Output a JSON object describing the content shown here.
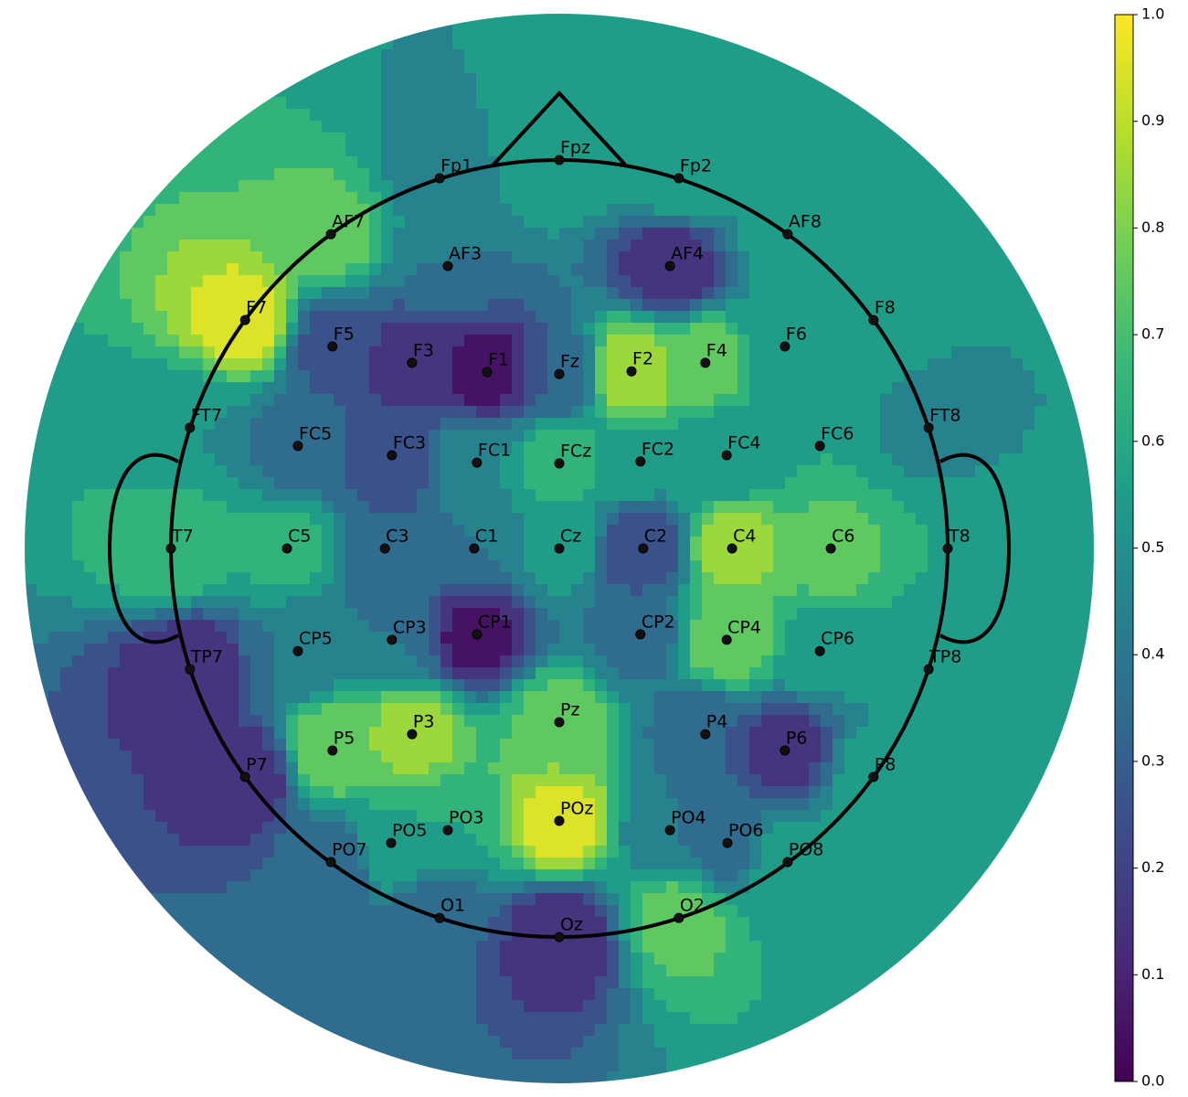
{
  "chart_data": {
    "type": "topomap",
    "colormap": "viridis",
    "clim": [
      0,
      1
    ],
    "cticks": [
      {
        "value": 0,
        "label": "0.0"
      },
      0.1,
      0.2,
      0.3,
      0.4,
      0.5,
      0.6,
      0.7,
      0.8,
      0.9,
      {
        "value": 1,
        "label": "1.0"
      }
    ],
    "levels": 10,
    "electrodes": [
      {
        "name": "Fp1",
        "x": -0.308,
        "y": 0.953,
        "value": 0.45
      },
      {
        "name": "Fpz",
        "x": 0,
        "y": 1.0,
        "value": 0.6
      },
      {
        "name": "Fp2",
        "x": 0.308,
        "y": 0.953,
        "value": 0.6
      },
      {
        "name": "AF7",
        "x": -0.588,
        "y": 0.809,
        "value": 0.75
      },
      {
        "name": "AF3",
        "x": -0.287,
        "y": 0.727,
        "value": 0.4
      },
      {
        "name": "AF4",
        "x": 0.285,
        "y": 0.727,
        "value": 0.1
      },
      {
        "name": "AF8",
        "x": 0.588,
        "y": 0.809,
        "value": 0.55
      },
      {
        "name": "F7",
        "x": -0.809,
        "y": 0.588,
        "value": 0.95
      },
      {
        "name": "F5",
        "x": -0.584,
        "y": 0.52,
        "value": 0.25
      },
      {
        "name": "F3",
        "x": -0.379,
        "y": 0.478,
        "value": 0.15
      },
      {
        "name": "F1",
        "x": -0.186,
        "y": 0.454,
        "value": 0.05
      },
      {
        "name": "Fz",
        "x": 0,
        "y": 0.449,
        "value": 0.3
      },
      {
        "name": "F2",
        "x": 0.186,
        "y": 0.456,
        "value": 0.9
      },
      {
        "name": "F4",
        "x": 0.376,
        "y": 0.478,
        "value": 0.75
      },
      {
        "name": "F6",
        "x": 0.581,
        "y": 0.52,
        "value": 0.5
      },
      {
        "name": "F8",
        "x": 0.809,
        "y": 0.588,
        "value": 0.55
      },
      {
        "name": "FT7",
        "x": -0.951,
        "y": 0.311,
        "value": 0.5
      },
      {
        "name": "FC5",
        "x": -0.673,
        "y": 0.264,
        "value": 0.35
      },
      {
        "name": "FC3",
        "x": -0.431,
        "y": 0.24,
        "value": 0.2
      },
      {
        "name": "FC1",
        "x": -0.212,
        "y": 0.221,
        "value": 0.5
      },
      {
        "name": "FCz",
        "x": 0,
        "y": 0.219,
        "value": 0.65
      },
      {
        "name": "FC2",
        "x": 0.209,
        "y": 0.224,
        "value": 0.55
      },
      {
        "name": "FC4",
        "x": 0.431,
        "y": 0.24,
        "value": 0.5
      },
      {
        "name": "FC6",
        "x": 0.671,
        "y": 0.264,
        "value": 0.6
      },
      {
        "name": "FT8",
        "x": 0.951,
        "y": 0.311,
        "value": 0.45
      },
      {
        "name": "T7",
        "x": -1.0,
        "y": 0,
        "value": 0.7
      },
      {
        "name": "C5",
        "x": -0.701,
        "y": 0,
        "value": 0.65
      },
      {
        "name": "C3",
        "x": -0.449,
        "y": 0,
        "value": 0.3
      },
      {
        "name": "C1",
        "x": -0.219,
        "y": 0,
        "value": 0.4
      },
      {
        "name": "Cz",
        "x": 0,
        "y": 0,
        "value": 0.55
      },
      {
        "name": "C2",
        "x": 0.216,
        "y": 0,
        "value": 0.2
      },
      {
        "name": "C4",
        "x": 0.445,
        "y": 0,
        "value": 0.85
      },
      {
        "name": "C6",
        "x": 0.699,
        "y": 0,
        "value": 0.75
      },
      {
        "name": "T8",
        "x": 1.0,
        "y": 0,
        "value": 0.6
      },
      {
        "name": "TP7",
        "x": -0.951,
        "y": -0.311,
        "value": 0.1
      },
      {
        "name": "CP5",
        "x": -0.673,
        "y": -0.264,
        "value": 0.4
      },
      {
        "name": "CP3",
        "x": -0.431,
        "y": -0.235,
        "value": 0.4
      },
      {
        "name": "CP1",
        "x": -0.212,
        "y": -0.221,
        "value": 0.05
      },
      {
        "name": "CP2",
        "x": 0.209,
        "y": -0.221,
        "value": 0.35
      },
      {
        "name": "CP4",
        "x": 0.431,
        "y": -0.235,
        "value": 0.8
      },
      {
        "name": "CP6",
        "x": 0.671,
        "y": -0.264,
        "value": 0.55
      },
      {
        "name": "TP8",
        "x": 0.951,
        "y": -0.311,
        "value": 0.5
      },
      {
        "name": "P7",
        "x": -0.809,
        "y": -0.588,
        "value": 0.1
      },
      {
        "name": "P5",
        "x": -0.584,
        "y": -0.52,
        "value": 0.8
      },
      {
        "name": "P3",
        "x": -0.379,
        "y": -0.478,
        "value": 0.85
      },
      {
        "name": "Pz",
        "x": 0,
        "y": -0.447,
        "value": 0.75
      },
      {
        "name": "P4",
        "x": 0.376,
        "y": -0.478,
        "value": 0.3
      },
      {
        "name": "P6",
        "x": 0.581,
        "y": -0.52,
        "value": 0.15
      },
      {
        "name": "P8",
        "x": 0.809,
        "y": -0.588,
        "value": 0.55
      },
      {
        "name": "PO7",
        "x": -0.588,
        "y": -0.807,
        "value": 0.3
      },
      {
        "name": "PO5",
        "x": -0.433,
        "y": -0.758,
        "value": 0.6
      },
      {
        "name": "PO3",
        "x": -0.287,
        "y": -0.725,
        "value": 0.6
      },
      {
        "name": "POz",
        "x": 0,
        "y": -0.701,
        "value": 0.95
      },
      {
        "name": "PO4",
        "x": 0.285,
        "y": -0.725,
        "value": 0.4
      },
      {
        "name": "PO6",
        "x": 0.433,
        "y": -0.758,
        "value": 0.35
      },
      {
        "name": "PO8",
        "x": 0.588,
        "y": -0.807,
        "value": 0.6
      },
      {
        "name": "O1",
        "x": -0.308,
        "y": -0.951,
        "value": 0.3
      },
      {
        "name": "Oz",
        "x": 0,
        "y": -1.0,
        "value": 0.1
      },
      {
        "name": "O2",
        "x": 0.308,
        "y": -0.951,
        "value": 0.75
      }
    ]
  }
}
